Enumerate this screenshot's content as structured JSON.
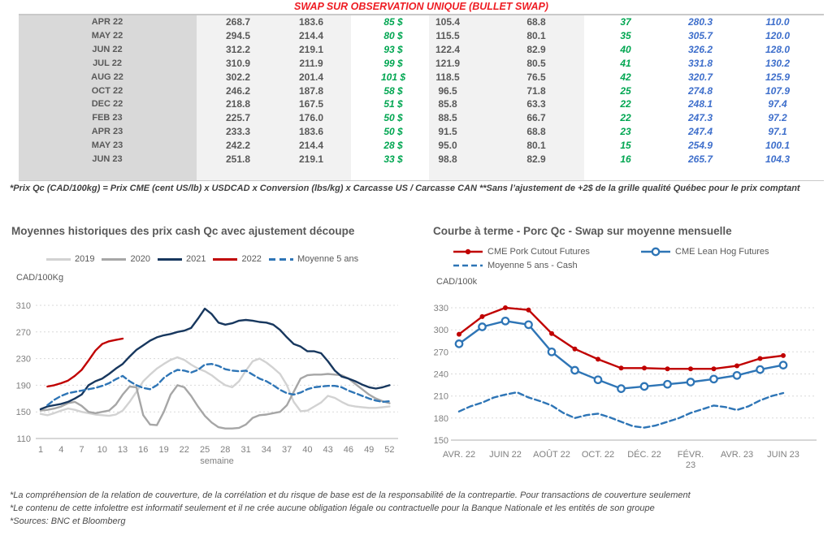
{
  "table": {
    "title": "SWAP SUR OBSERVATION UNIQUE (BULLET SWAP)",
    "title_color": "#ee1c23",
    "rows": [
      [
        "APR 22",
        "268.7",
        "183.6",
        "85 $",
        "105.4",
        "68.8",
        "37",
        "280.3",
        "110.0"
      ],
      [
        "MAY 22",
        "294.5",
        "214.4",
        "80 $",
        "115.5",
        "80.1",
        "35",
        "305.7",
        "120.0"
      ],
      [
        "JUN 22",
        "312.2",
        "219.1",
        "93 $",
        "122.4",
        "82.9",
        "40",
        "326.2",
        "128.0"
      ],
      [
        "JUL 22",
        "310.9",
        "211.9",
        "99 $",
        "121.9",
        "80.5",
        "41",
        "331.8",
        "130.2"
      ],
      [
        "AUG 22",
        "302.2",
        "201.4",
        "101 $",
        "118.5",
        "76.5",
        "42",
        "320.7",
        "125.9"
      ],
      [
        "OCT 22",
        "246.2",
        "187.8",
        "58 $",
        "96.5",
        "71.8",
        "25",
        "274.8",
        "107.9"
      ],
      [
        "DEC 22",
        "218.8",
        "167.5",
        "51 $",
        "85.8",
        "63.3",
        "22",
        "248.1",
        "97.4"
      ],
      [
        "FEB 23",
        "225.7",
        "176.0",
        "50 $",
        "88.5",
        "66.7",
        "22",
        "247.3",
        "97.2"
      ],
      [
        "APR 23",
        "233.3",
        "183.6",
        "50 $",
        "91.5",
        "68.8",
        "23",
        "247.4",
        "97.1"
      ],
      [
        "MAY 23",
        "242.2",
        "214.4",
        "28 $",
        "95.0",
        "80.1",
        "15",
        "254.9",
        "100.1"
      ],
      [
        "JUN 23",
        "251.8",
        "219.1",
        "33 $",
        "98.8",
        "82.9",
        "16",
        "265.7",
        "104.3"
      ]
    ],
    "green": "#00a651",
    "blue": "#3d6ecb",
    "footnote": "*Prix Qc (CAD/100kg) = Prix CME (cent US/lb) x USDCAD x Conversion (lbs/kg) x Carcasse US / Carcasse CAN **Sans l’ajustement de +2$ de la grille qualité Québec pour le prix comptant"
  },
  "chart_data": [
    {
      "type": "line",
      "title": "Moyennes historiques des prix cash Qc avec ajustement découpe",
      "unit": "CAD/100Kg",
      "xlabel": "semaine",
      "ylim": [
        110,
        310
      ],
      "y_ticks": [
        310,
        270,
        230,
        190,
        150,
        110
      ],
      "x_ticks": [
        1,
        4,
        7,
        10,
        13,
        16,
        19,
        22,
        25,
        28,
        31,
        34,
        37,
        40,
        43,
        46,
        49,
        52
      ],
      "grid": "dashed-horizontal",
      "legend_position": "top",
      "series": [
        {
          "name": "2019",
          "color": "#d2d2d2",
          "start_x": 1,
          "values": [
            147,
            145,
            148,
            152,
            155,
            153,
            150,
            148,
            146,
            145,
            144,
            146,
            152,
            165,
            180,
            196,
            206,
            215,
            222,
            228,
            232,
            228,
            221,
            215,
            211,
            205,
            197,
            190,
            187,
            196,
            212,
            226,
            230,
            224,
            216,
            207,
            190,
            165,
            151,
            152,
            158,
            164,
            174,
            171,
            165,
            160,
            158,
            157,
            156,
            156,
            157,
            158
          ]
        },
        {
          "name": "2020",
          "color": "#a6a6a6",
          "start_x": 1,
          "values": [
            152,
            153,
            155,
            158,
            163,
            165,
            159,
            150,
            148,
            150,
            152,
            161,
            176,
            188,
            187,
            145,
            131,
            130,
            150,
            176,
            190,
            187,
            174,
            158,
            144,
            134,
            127,
            125,
            125,
            126,
            131,
            141,
            145,
            146,
            148,
            150,
            160,
            180,
            200,
            205,
            206,
            206,
            207,
            206,
            205,
            200,
            192,
            184,
            176,
            170,
            166,
            163
          ]
        },
        {
          "name": "2021",
          "color": "#17375e",
          "start_x": 1,
          "values": [
            154,
            158,
            160,
            162,
            165,
            170,
            176,
            190,
            196,
            200,
            207,
            215,
            222,
            233,
            243,
            250,
            257,
            262,
            265,
            267,
            270,
            272,
            276,
            290,
            305,
            297,
            284,
            281,
            283,
            287,
            288,
            287,
            285,
            284,
            281,
            273,
            262,
            252,
            248,
            241,
            241,
            238,
            226,
            212,
            203,
            200,
            196,
            191,
            187,
            185,
            187,
            190
          ]
        },
        {
          "name": "2022",
          "color": "#c00000",
          "start_x": 2,
          "values": [
            188,
            190,
            193,
            197,
            204,
            213,
            227,
            242,
            252,
            256,
            258,
            260
          ]
        },
        {
          "name": "Moyenne 5 ans",
          "color": "#2e75b6",
          "dash": "7,4",
          "start_x": 2,
          "values": [
            160,
            168,
            174,
            178,
            180,
            182,
            184,
            186,
            189,
            193,
            199,
            204,
            196,
            190,
            186,
            184,
            190,
            201,
            208,
            213,
            212,
            209,
            213,
            221,
            222,
            219,
            214,
            212,
            211,
            212,
            206,
            200,
            196,
            190,
            183,
            178,
            176,
            179,
            184,
            187,
            188,
            189,
            189,
            187,
            182,
            178,
            174,
            170,
            167,
            165,
            166
          ]
        }
      ]
    },
    {
      "type": "line",
      "title": "Courbe à terme - Porc Qc - Swap sur moyenne mensuelle",
      "unit": "CAD/100k",
      "ylim": [
        150,
        330
      ],
      "y_ticks": [
        330,
        300,
        270,
        240,
        210,
        180,
        150
      ],
      "x_tick_labels": [
        "AVR. 22",
        "JUIN 22",
        "AOÛT 22",
        "OCT. 22",
        "DÉC. 22",
        "FÉVR.\n23",
        "AVR. 23",
        "JUIN 23"
      ],
      "grid": "dashed-horizontal",
      "legend_position": "top",
      "series": [
        {
          "name": "CME Pork Cutout Futures",
          "color": "#c00000",
          "marker": "dot",
          "start_x": 1,
          "values": [
            294,
            318,
            330,
            327,
            295,
            274,
            260,
            248,
            248,
            247,
            247,
            247,
            251,
            261,
            265
          ]
        },
        {
          "name": "CME Lean Hog Futures",
          "color": "#2e75b6",
          "marker": "circle",
          "start_x": 1,
          "values": [
            281,
            304,
            312,
            307,
            270,
            245,
            232,
            220,
            223,
            226,
            229,
            233,
            238,
            246,
            252
          ]
        },
        {
          "name": "Moyenne 5 ans - Cash",
          "color": "#2e75b6",
          "dash": "7,4",
          "start_x": 1,
          "x_step": 0.5,
          "values": [
            189,
            196,
            201,
            208,
            212,
            215,
            208,
            203,
            197,
            187,
            180,
            184,
            186,
            181,
            175,
            169,
            167,
            170,
            175,
            180,
            187,
            192,
            197,
            195,
            191,
            196,
            204,
            210,
            214
          ]
        }
      ]
    }
  ],
  "footer": {
    "lines": [
      "*La compréhension de la relation de couverture, de la corrélation et du risque de base est de la responsabilité de la contrepartie. Pour transactions de couverture seulement",
      "*Le contenu de cette infolettre est informatif seulement et il ne crée aucune obligation légale ou contractuelle pour la Banque Nationale et les entités de son groupe",
      "*Sources: BNC et Bloomberg"
    ]
  }
}
